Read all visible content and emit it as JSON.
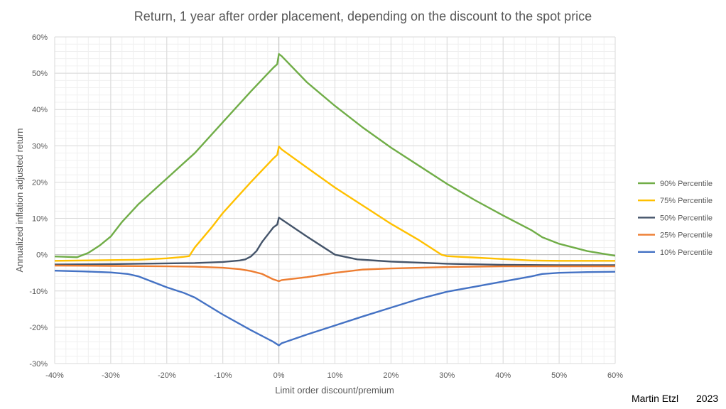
{
  "chart_data": {
    "type": "line",
    "title": "Return, 1 year after order placement, depending on the discount to the spot price",
    "xlabel": "Limit order discount/premium",
    "ylabel": "Annualized inflation adjusted return",
    "xlim": [
      -40,
      60
    ],
    "ylim": [
      -30,
      60
    ],
    "x_ticks": [
      -40,
      -30,
      -20,
      -10,
      0,
      10,
      20,
      30,
      40,
      50,
      60
    ],
    "x_tick_labels": [
      "-40%",
      "-30%",
      "-20%",
      "-10%",
      "0%",
      "10%",
      "20%",
      "30%",
      "40%",
      "50%",
      "60%"
    ],
    "y_ticks": [
      -30,
      -20,
      -10,
      0,
      10,
      20,
      30,
      40,
      50,
      60
    ],
    "y_tick_labels": [
      "-30%",
      "-20%",
      "-10%",
      "0%",
      "10%",
      "20%",
      "30%",
      "40%",
      "50%",
      "60%"
    ],
    "grid": true,
    "legend_position": "right",
    "series": [
      {
        "name": "90% Percentile",
        "color": "#70AD47",
        "points": [
          [
            -40,
            -0.5
          ],
          [
            -38,
            -0.6
          ],
          [
            -36,
            -0.7
          ],
          [
            -34,
            0.5
          ],
          [
            -32,
            2.5
          ],
          [
            -30,
            5
          ],
          [
            -28,
            9
          ],
          [
            -25,
            14
          ],
          [
            -20,
            21
          ],
          [
            -15,
            28
          ],
          [
            -10,
            36.5
          ],
          [
            -5,
            45
          ],
          [
            -1,
            51.5
          ],
          [
            -0.3,
            52.5
          ],
          [
            0,
            55.3
          ],
          [
            0.5,
            54.7
          ],
          [
            5,
            47.5
          ],
          [
            10,
            41
          ],
          [
            15,
            35
          ],
          [
            20,
            29.5
          ],
          [
            25,
            24.5
          ],
          [
            30,
            19.5
          ],
          [
            35,
            15
          ],
          [
            40,
            10.8
          ],
          [
            45,
            6.8
          ],
          [
            47,
            4.8
          ],
          [
            50,
            3
          ],
          [
            55,
            1
          ],
          [
            60,
            -0.3
          ]
        ]
      },
      {
        "name": "75% Percentile",
        "color": "#FFC000",
        "points": [
          [
            -40,
            -1.7
          ],
          [
            -35,
            -1.6
          ],
          [
            -30,
            -1.5
          ],
          [
            -25,
            -1.4
          ],
          [
            -20,
            -1
          ],
          [
            -17,
            -0.6
          ],
          [
            -16,
            -0.4
          ],
          [
            -15,
            2
          ],
          [
            -12,
            7.5
          ],
          [
            -10,
            11.5
          ],
          [
            -5,
            20
          ],
          [
            -1,
            26.5
          ],
          [
            -0.3,
            27.5
          ],
          [
            0,
            29.8
          ],
          [
            0.5,
            29
          ],
          [
            5,
            24
          ],
          [
            10,
            18.5
          ],
          [
            15,
            13.5
          ],
          [
            20,
            8.5
          ],
          [
            25,
            4
          ],
          [
            29,
            0
          ],
          [
            30,
            -0.4
          ],
          [
            35,
            -0.8
          ],
          [
            40,
            -1.2
          ],
          [
            45,
            -1.6
          ],
          [
            50,
            -1.7
          ],
          [
            55,
            -1.7
          ],
          [
            60,
            -1.7
          ]
        ]
      },
      {
        "name": "50% Percentile",
        "color": "#44546A",
        "points": [
          [
            -40,
            -2.7
          ],
          [
            -30,
            -2.6
          ],
          [
            -20,
            -2.4
          ],
          [
            -15,
            -2.3
          ],
          [
            -10,
            -2
          ],
          [
            -7,
            -1.6
          ],
          [
            -6,
            -1.3
          ],
          [
            -5,
            -0.5
          ],
          [
            -4,
            1
          ],
          [
            -3,
            3.5
          ],
          [
            -2,
            5.5
          ],
          [
            -1,
            7.5
          ],
          [
            -0.3,
            8.3
          ],
          [
            0,
            10.2
          ],
          [
            0.5,
            9.7
          ],
          [
            5,
            5
          ],
          [
            8,
            2
          ],
          [
            10,
            0
          ],
          [
            14,
            -1.3
          ],
          [
            20,
            -1.9
          ],
          [
            30,
            -2.5
          ],
          [
            40,
            -2.8
          ],
          [
            50,
            -2.9
          ],
          [
            60,
            -2.9
          ]
        ]
      },
      {
        "name": "25% Percentile",
        "color": "#ED7D31",
        "points": [
          [
            -40,
            -3
          ],
          [
            -30,
            -3.1
          ],
          [
            -20,
            -3.2
          ],
          [
            -15,
            -3.3
          ],
          [
            -10,
            -3.6
          ],
          [
            -7,
            -4
          ],
          [
            -5,
            -4.5
          ],
          [
            -3,
            -5.3
          ],
          [
            -1,
            -6.8
          ],
          [
            0,
            -7.3
          ],
          [
            0.5,
            -7
          ],
          [
            5,
            -6.2
          ],
          [
            10,
            -5
          ],
          [
            15,
            -4.1
          ],
          [
            20,
            -3.8
          ],
          [
            30,
            -3.4
          ],
          [
            40,
            -3.2
          ],
          [
            50,
            -3.2
          ],
          [
            60,
            -3.2
          ]
        ]
      },
      {
        "name": "10% Percentile",
        "color": "#4472C4",
        "points": [
          [
            -40,
            -4.4
          ],
          [
            -35,
            -4.6
          ],
          [
            -30,
            -4.9
          ],
          [
            -27,
            -5.3
          ],
          [
            -25,
            -6
          ],
          [
            -22,
            -7.8
          ],
          [
            -20,
            -9
          ],
          [
            -17,
            -10.5
          ],
          [
            -15,
            -11.8
          ],
          [
            -10,
            -16.5
          ],
          [
            -5,
            -20.8
          ],
          [
            -1,
            -24
          ],
          [
            0,
            -25
          ],
          [
            0.5,
            -24.4
          ],
          [
            5,
            -22
          ],
          [
            10,
            -19.5
          ],
          [
            15,
            -17
          ],
          [
            20,
            -14.6
          ],
          [
            25,
            -12.2
          ],
          [
            30,
            -10.2
          ],
          [
            35,
            -8.8
          ],
          [
            40,
            -7.4
          ],
          [
            45,
            -6
          ],
          [
            47,
            -5.3
          ],
          [
            50,
            -5
          ],
          [
            55,
            -4.8
          ],
          [
            60,
            -4.7
          ]
        ]
      }
    ]
  },
  "credit": {
    "author": "Martin Etzl",
    "year": "2023"
  }
}
